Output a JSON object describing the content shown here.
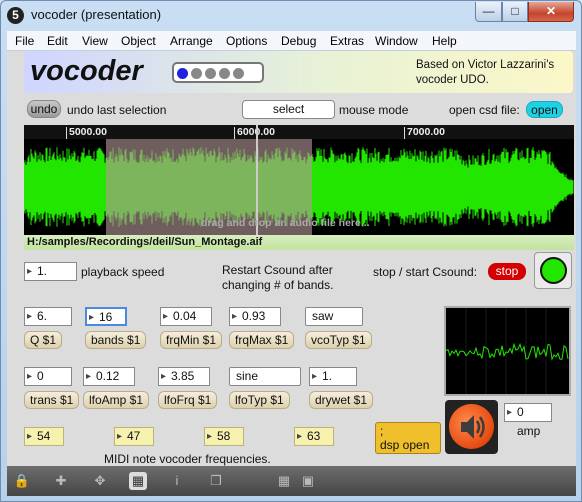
{
  "window": {
    "title": "vocoder (presentation)",
    "app_icon": "5"
  },
  "menu": [
    "File",
    "Edit",
    "View",
    "Object",
    "Arrange",
    "Options",
    "Debug",
    "Extras",
    "Window",
    "Help"
  ],
  "header": {
    "title": "vocoder",
    "credit": "Based on Victor Lazzarini's vocoder UDO.",
    "dots_total": 5,
    "dots_active": 1
  },
  "controls": {
    "undo_label": "undo",
    "undo_text": "undo last selection",
    "select_label": "select",
    "mouse_mode_text": "mouse mode",
    "open_csd_text": "open csd file:",
    "open_label": "open"
  },
  "waveform": {
    "ruler_labels": [
      "5000.00",
      "6000.00",
      "7000.00"
    ],
    "drop_hint": "drag and drop an audio file here...",
    "file_path": "H:/samples/Recordings/deil/Sun_Montage.aif"
  },
  "playback": {
    "speed_value": "1.",
    "speed_label": "playback speed",
    "restart_note_1": "Restart Csound after",
    "restart_note_2": "changing # of bands.",
    "start_stop_text": "stop / start Csound:",
    "stop_label": "stop"
  },
  "params_row1": [
    {
      "value": "6.",
      "label": "Q $1"
    },
    {
      "value": "16",
      "label": "bands $1"
    },
    {
      "value": "0.04",
      "label": "frqMin $1"
    },
    {
      "value": "0.93",
      "label": "frqMax $1"
    },
    {
      "value": "saw",
      "label": "vcoTyp $1"
    }
  ],
  "params_row2": [
    {
      "value": "0",
      "label": "trans $1"
    },
    {
      "value": "0.12",
      "label": "lfoAmp $1"
    },
    {
      "value": "3.85",
      "label": "lfoFrq $1"
    },
    {
      "value": "sine",
      "label": "lfoTyp $1"
    },
    {
      "value": "1.",
      "label": "drywet $1"
    }
  ],
  "midi": {
    "notes": [
      "54",
      "47",
      "58",
      "63"
    ],
    "caption": "MIDI note vocoder frequencies."
  },
  "dsp": {
    "line1": ";",
    "line2": "dsp open"
  },
  "amp": {
    "value": "0",
    "label": "amp"
  },
  "colors": {
    "wave": "#22e600",
    "stop": "#d40000",
    "open": "#1ed2e6",
    "dsp": "#efbf2c"
  },
  "toolbar_icons": [
    "lock-icon",
    "plus-icon",
    "move-icon",
    "presentation-icon",
    "info-icon",
    "layers-icon",
    "grid-icon",
    "snap-icon"
  ]
}
